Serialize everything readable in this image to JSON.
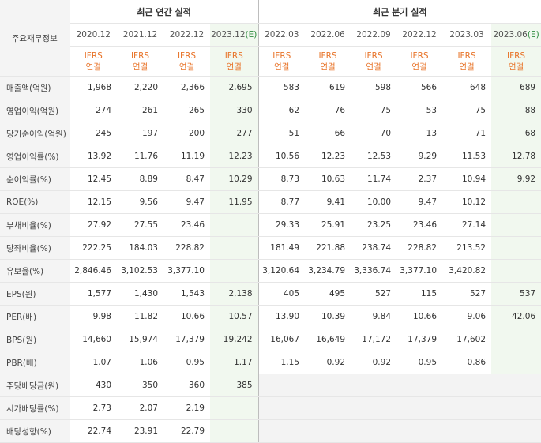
{
  "header": {
    "label_head": "주요재무정보",
    "annual_title": "최근 연간 실적",
    "quarter_title": "최근 분기 실적",
    "annual_periods": [
      "2020.12",
      "2021.12",
      "2022.12",
      "2023.12"
    ],
    "annual_est_suffix": "(E)",
    "quarter_periods": [
      "2022.03",
      "2022.06",
      "2022.09",
      "2022.12",
      "2023.03",
      "2023.06"
    ],
    "quarter_est_suffix": "(E)",
    "ifrs_top": "IFRS",
    "ifrs_bottom": "연결"
  },
  "rows": [
    {
      "label": "매출액(억원)",
      "annual": [
        "1,968",
        "2,220",
        "2,366",
        "2,695"
      ],
      "quarter": [
        "583",
        "619",
        "598",
        "566",
        "648",
        "689"
      ]
    },
    {
      "label": "영업이익(억원)",
      "annual": [
        "274",
        "261",
        "265",
        "330"
      ],
      "quarter": [
        "62",
        "76",
        "75",
        "53",
        "75",
        "88"
      ]
    },
    {
      "label": "당기순이익(억원)",
      "annual": [
        "245",
        "197",
        "200",
        "277"
      ],
      "quarter": [
        "51",
        "66",
        "70",
        "13",
        "71",
        "68"
      ]
    },
    {
      "label": "영업이익률(%)",
      "annual": [
        "13.92",
        "11.76",
        "11.19",
        "12.23"
      ],
      "quarter": [
        "10.56",
        "12.23",
        "12.53",
        "9.29",
        "11.53",
        "12.78"
      ]
    },
    {
      "label": "순이익률(%)",
      "annual": [
        "12.45",
        "8.89",
        "8.47",
        "10.29"
      ],
      "quarter": [
        "8.73",
        "10.63",
        "11.74",
        "2.37",
        "10.94",
        "9.92"
      ]
    },
    {
      "label": "ROE(%)",
      "annual": [
        "12.15",
        "9.56",
        "9.47",
        "11.95"
      ],
      "quarter": [
        "8.77",
        "9.41",
        "10.00",
        "9.47",
        "10.12",
        ""
      ]
    },
    {
      "label": "부채비율(%)",
      "annual": [
        "27.92",
        "27.55",
        "23.46",
        ""
      ],
      "quarter": [
        "29.33",
        "25.91",
        "23.25",
        "23.46",
        "27.14",
        ""
      ]
    },
    {
      "label": "당좌비율(%)",
      "annual": [
        "222.25",
        "184.03",
        "228.82",
        ""
      ],
      "quarter": [
        "181.49",
        "221.88",
        "238.74",
        "228.82",
        "213.52",
        ""
      ]
    },
    {
      "label": "유보율(%)",
      "annual": [
        "2,846.46",
        "3,102.53",
        "3,377.10",
        ""
      ],
      "quarter": [
        "3,120.64",
        "3,234.79",
        "3,336.74",
        "3,377.10",
        "3,420.82",
        ""
      ]
    },
    {
      "label": "EPS(원)",
      "annual": [
        "1,577",
        "1,430",
        "1,543",
        "2,138"
      ],
      "quarter": [
        "405",
        "495",
        "527",
        "115",
        "527",
        "537"
      ]
    },
    {
      "label": "PER(배)",
      "annual": [
        "9.98",
        "11.82",
        "10.66",
        "10.57"
      ],
      "quarter": [
        "13.90",
        "10.39",
        "9.84",
        "10.66",
        "9.06",
        "42.06"
      ]
    },
    {
      "label": "BPS(원)",
      "annual": [
        "14,660",
        "15,974",
        "17,379",
        "19,242"
      ],
      "quarter": [
        "16,067",
        "16,649",
        "17,172",
        "17,379",
        "17,602",
        ""
      ]
    },
    {
      "label": "PBR(배)",
      "annual": [
        "1.07",
        "1.06",
        "0.95",
        "1.17"
      ],
      "quarter": [
        "1.15",
        "0.92",
        "0.92",
        "0.95",
        "0.86",
        ""
      ]
    },
    {
      "label": "주당배당금(원)",
      "annual": [
        "430",
        "350",
        "360",
        "385"
      ],
      "quarter": [
        "",
        "",
        "",
        "",
        "",
        ""
      ]
    },
    {
      "label": "시가배당률(%)",
      "annual": [
        "2.73",
        "2.07",
        "2.19",
        ""
      ],
      "quarter": [
        "",
        "",
        "",
        "",
        "",
        ""
      ]
    },
    {
      "label": "배당성향(%)",
      "annual": [
        "22.74",
        "23.91",
        "22.79",
        ""
      ],
      "quarter": [
        "",
        "",
        "",
        "",
        "",
        ""
      ]
    }
  ],
  "colors": {
    "ifrs": "#e8742a",
    "estimate_bg": "#f1f8ef",
    "estimate_tag": "#2e8b3e",
    "label_bg": "#f4f4f4"
  }
}
